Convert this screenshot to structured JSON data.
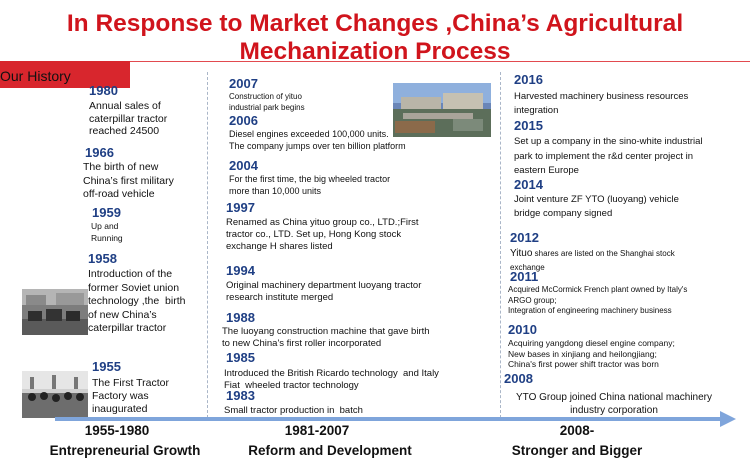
{
  "title": {
    "line1": "In Response to Market Changes ,China’s Agricultural",
    "line2": "Mechanization Process"
  },
  "history_label": "Our History",
  "col1": {
    "y1980": "1980",
    "t1980": "Annual sales of\ncaterpillar tractor\nreached 24500",
    "y1966": "1966",
    "t1966": "The birth of new\nChina’s first military\noff-road vehicle",
    "y1959": "1959",
    "t1959": "Up and\nRunning",
    "y1958": "1958",
    "t1958": "Introduction of the\nformer Soviet union\ntechnology ,the  birth\nof new China’s\ncaterpillar tractor",
    "y1955": "1955",
    "t1955": "The First Tractor\nFactory was\ninaugurated"
  },
  "col2": {
    "y2007": "2007",
    "t2007": "Construction of yituo\nindustrial park begins",
    "y2006": "2006",
    "t2006": "Diesel engines exceeded 100,000 units.\nThe company jumps over ten billion platform",
    "y2004": "2004",
    "t2004": "For the first time, the big wheeled tractor\nmore than 10,000 units",
    "y1997": "1997",
    "t1997": "Renamed as China yituo group co., LTD.;First\ntractor co., LTD. Set up, Hong Kong stock\nexchange H shares listed",
    "y1994": "1994",
    "t1994": "Original machinery department luoyang tractor\nresearch institute merged",
    "y1988": "1988",
    "t1988": "The luoyang construction machine that gave birth\nto new China's first roller incorporated",
    "y1985": "1985",
    "t1985": "Introduced the British Ricardo technology  and Italy\nFiat  wheeled tractor technology",
    "y1983": "1983",
    "t1983": "Small tractor production in  batch"
  },
  "col3": {
    "y2016": "2016",
    "t2016": "Harvested machinery business resources\nintegration",
    "y2015": "2015",
    "t2015": "Set up a company in the sino-white industrial\npark to implement the r&d center project in\neastern Europe",
    "y2014": "2014",
    "t2014": "Joint venture ZF YTO (luoyang) vehicle\nbridge company signed",
    "y2012": "2012",
    "t2012_a": "Yituo",
    "t2012_b": " shares are listed on the Shanghai stock\nexchange",
    "y2011": "2011",
    "t2011": "Acquired McCormick French plant owned by Italy's\nARGO group;\nIntegration of engineering machinery business",
    "y2010": "2010",
    "t2010": "Acquiring yangdong diesel engine company;\nNew bases in xinjiang and heilongjiang;\nChina's first power shift tractor was born",
    "y2008": "2008",
    "t2008": "YTO Group joined China national machinery\nindustry corporation"
  },
  "eras": {
    "era1": "1955-1980",
    "era2": "1981-2007",
    "era3": "2008-"
  },
  "stages": {
    "stage1": "Entrepreneurial Growth",
    "stage2": "Reform and Development",
    "stage3": "Stronger and Bigger"
  },
  "colors": {
    "title_red": "#d0141c",
    "history_bar": "#d8262d",
    "year_blue": "#1f3f84",
    "arrow_blue": "#7fa5db"
  }
}
